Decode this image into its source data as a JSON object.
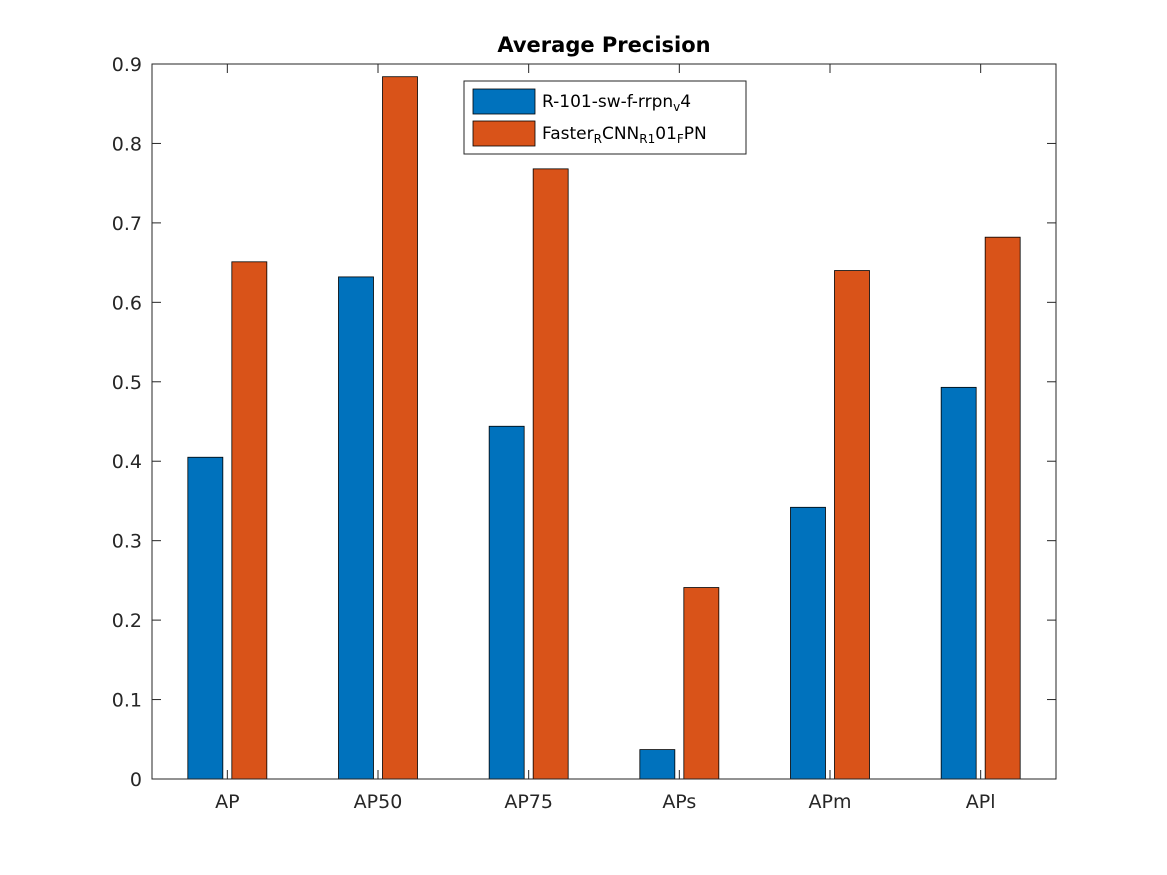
{
  "chart_data": {
    "type": "bar",
    "title": "Average Precision",
    "xlabel": "",
    "ylabel": "",
    "categories": [
      "AP",
      "AP50",
      "AP75",
      "APs",
      "APm",
      "APl"
    ],
    "ylim": [
      0,
      0.9
    ],
    "yticks": [
      "0",
      "0.1",
      "0.2",
      "0.3",
      "0.4",
      "0.5",
      "0.6",
      "0.7",
      "0.8",
      "0.9"
    ],
    "grid": false,
    "legend_position": "top-center",
    "series": [
      {
        "color": "#0072BD",
        "legend": [
          {
            "text": "R-101-sw-f-rrpn",
            "sub": false
          },
          {
            "text": "v",
            "sub": true
          },
          {
            "text": "4",
            "sub": false
          }
        ],
        "values": [
          0.405,
          0.632,
          0.444,
          0.037,
          0.342,
          0.493
        ]
      },
      {
        "color": "#D95319",
        "legend": [
          {
            "text": "Faster",
            "sub": false
          },
          {
            "text": "R",
            "sub": true
          },
          {
            "text": "CNN",
            "sub": false
          },
          {
            "text": "R1",
            "sub": true
          },
          {
            "text": "01",
            "sub": false
          },
          {
            "text": "F",
            "sub": true
          },
          {
            "text": "PN",
            "sub": false
          }
        ],
        "values": [
          0.651,
          0.884,
          0.768,
          0.241,
          0.64,
          0.682
        ]
      }
    ]
  }
}
